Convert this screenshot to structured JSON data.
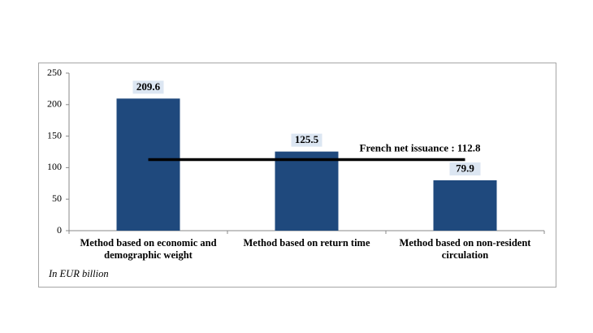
{
  "chart_data": {
    "type": "bar",
    "categories": [
      "Method based on economic and demographic weight",
      "Method based on return time",
      "Method based on non-resident circulation"
    ],
    "values": [
      209.6,
      125.5,
      79.9
    ],
    "color": "#1f497d",
    "ylim": [
      0,
      250
    ],
    "yticks": [
      0,
      50,
      100,
      150,
      200,
      250
    ],
    "grid": false,
    "reference_line": {
      "value": 112.8,
      "label": "French net issuance : 112.8"
    },
    "note": "In EUR billion"
  }
}
